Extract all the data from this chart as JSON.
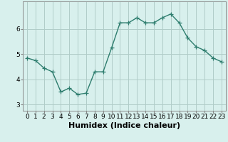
{
  "x": [
    0,
    1,
    2,
    3,
    4,
    5,
    6,
    7,
    8,
    9,
    10,
    11,
    12,
    13,
    14,
    15,
    16,
    17,
    18,
    19,
    20,
    21,
    22,
    23
  ],
  "y": [
    4.85,
    4.75,
    4.45,
    4.3,
    3.5,
    3.65,
    3.4,
    3.45,
    4.3,
    4.3,
    5.25,
    6.25,
    6.25,
    6.45,
    6.25,
    6.25,
    6.45,
    6.6,
    6.25,
    5.65,
    5.3,
    5.15,
    4.85,
    4.7
  ],
  "line_color": "#2e7d6e",
  "marker": "+",
  "marker_size": 4,
  "bg_color": "#d8f0ed",
  "grid_color": "#b0ccc8",
  "xlabel": "Humidex (Indice chaleur)",
  "xlabel_fontsize": 8,
  "tick_fontsize": 6.5,
  "ylim": [
    2.75,
    7.1
  ],
  "yticks": [
    3,
    4,
    5,
    6
  ],
  "xticks": [
    0,
    1,
    2,
    3,
    4,
    5,
    6,
    7,
    8,
    9,
    10,
    11,
    12,
    13,
    14,
    15,
    16,
    17,
    18,
    19,
    20,
    21,
    22,
    23
  ],
  "line_width": 1.0
}
